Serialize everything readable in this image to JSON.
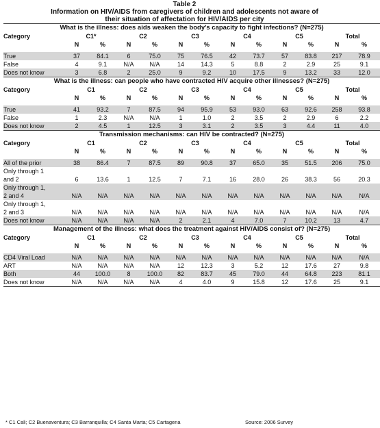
{
  "title": {
    "line1": "Table 2",
    "line2": "Information on HIV/AIDS from caregivers of children and adolescents not aware of",
    "line3": "their situation of affectation for HIV/AIDS per city"
  },
  "columns": {
    "category": "Category",
    "cities": [
      "C1*",
      "C2",
      "C3",
      "C4",
      "C5",
      "Total"
    ],
    "n": "N",
    "pct": "%"
  },
  "sections": [
    {
      "title": "What is the illness: does aids weaken the body's capacity to fight infections? (N=275)",
      "c1_label": "C1*",
      "rows": [
        {
          "label": "True",
          "shade": true,
          "values": [
            "37",
            "84.1",
            "6",
            "75.0",
            "75",
            "76.5",
            "42",
            "73.7",
            "57",
            "83.8",
            "217",
            "78.9"
          ]
        },
        {
          "label": "False",
          "shade": false,
          "values": [
            "4",
            "9.1",
            "N/A",
            "N/A",
            "14",
            "14.3",
            "5",
            "8.8",
            "2",
            "2.9",
            "25",
            "9.1"
          ]
        },
        {
          "label": "Does not know",
          "shade": true,
          "values": [
            "3",
            "6.8",
            "2",
            "25.0",
            "9",
            "9.2",
            "10",
            "17.5",
            "9",
            "13.2",
            "33",
            "12.0"
          ]
        }
      ]
    },
    {
      "title": "What is the illness: can people who have contracted HIV acquire other illnesses? (N=275)",
      "c1_label": "C1",
      "rows": [
        {
          "label": "True",
          "shade": true,
          "values": [
            "41",
            "93.2",
            "7",
            "87.5",
            "94",
            "95.9",
            "53",
            "93.0",
            "63",
            "92.6",
            "258",
            "93.8"
          ]
        },
        {
          "label": "False",
          "shade": false,
          "values": [
            "1",
            "2.3",
            "N/A",
            "N/A",
            "1",
            "1.0",
            "2",
            "3.5",
            "2",
            "2.9",
            "6",
            "2.2"
          ]
        },
        {
          "label": "Does not know",
          "shade": true,
          "values": [
            "2",
            "4.5",
            "1",
            "12.5",
            "3",
            "3.1",
            "2",
            "3.5",
            "3",
            "4.4",
            "11",
            "4.0"
          ]
        }
      ]
    },
    {
      "title": "Transmission mechanisms: can HIV be contracted? (N=275)",
      "c1_label": "C1",
      "rows": [
        {
          "label": "All of the prior",
          "shade": true,
          "values": [
            "38",
            "86.4",
            "7",
            "87.5",
            "89",
            "90.8",
            "37",
            "65.0",
            "35",
            "51.5",
            "206",
            "75.0"
          ]
        },
        {
          "label": "Only through 1",
          "label2": "and 2",
          "shade": false,
          "values": [
            "6",
            "13.6",
            "1",
            "12.5",
            "7",
            "7.1",
            "16",
            "28.0",
            "26",
            "38.3",
            "56",
            "20.3"
          ]
        },
        {
          "label": "Only through 1,",
          "label2": "2 and 4",
          "shade": true,
          "values": [
            "N/A",
            "N/A",
            "N/A",
            "N/A",
            "N/A",
            "N/A",
            "N/A",
            "N/A",
            "N/A",
            "N/A",
            "N/A",
            "N/A"
          ]
        },
        {
          "label": "Only through 1,",
          "label2": "2 and 3",
          "shade": false,
          "values": [
            "N/A",
            "N/A",
            "N/A",
            "N/A",
            "N/A",
            "N/A",
            "N/A",
            "N/A",
            "N/A",
            "N/A",
            "N/A",
            "N/A"
          ]
        },
        {
          "label": "Does not know",
          "shade": true,
          "values": [
            "N/A",
            "N/A",
            "N/A",
            "N/A",
            "2",
            "2.1",
            "4",
            "7.0",
            "7",
            "10.2",
            "13",
            "4.7"
          ]
        }
      ]
    },
    {
      "title": "Management of the illness: what does the treatment against HIV/AIDS consist of? (N=275)",
      "c1_label": "C1",
      "rows": [
        {
          "label": "CD4 Viral Load",
          "shade": true,
          "values": [
            "N/A",
            "N/A",
            "N/A",
            "N/A",
            "N/A",
            "N/A",
            "N/A",
            "N/A",
            "N/A",
            "N/A",
            "N/A",
            "N/A"
          ]
        },
        {
          "label": "ART",
          "shade": false,
          "values": [
            "N/A",
            "N/A",
            "N/A",
            "N/A",
            "12",
            "12.3",
            "3",
            "5.2",
            "12",
            "17.6",
            "27",
            "9.8"
          ]
        },
        {
          "label": "Both",
          "shade": true,
          "values": [
            "44",
            "100.0",
            "8",
            "100.0",
            "82",
            "83.7",
            "45",
            "79.0",
            "44",
            "64.8",
            "223",
            "81.1"
          ]
        },
        {
          "label": "Does not know",
          "shade": false,
          "values": [
            "N/A",
            "N/A",
            "N/A",
            "N/A",
            "4",
            "4.0",
            "9",
            "15.8",
            "12",
            "17.6",
            "25",
            "9.1"
          ]
        }
      ]
    }
  ],
  "footer": {
    "note": "* C1 Cali; C2 Buenaventura; C3 Barranquilla; C4 Santa Marta; C5 Cartagena",
    "source": "Source: 2006 Survey"
  }
}
